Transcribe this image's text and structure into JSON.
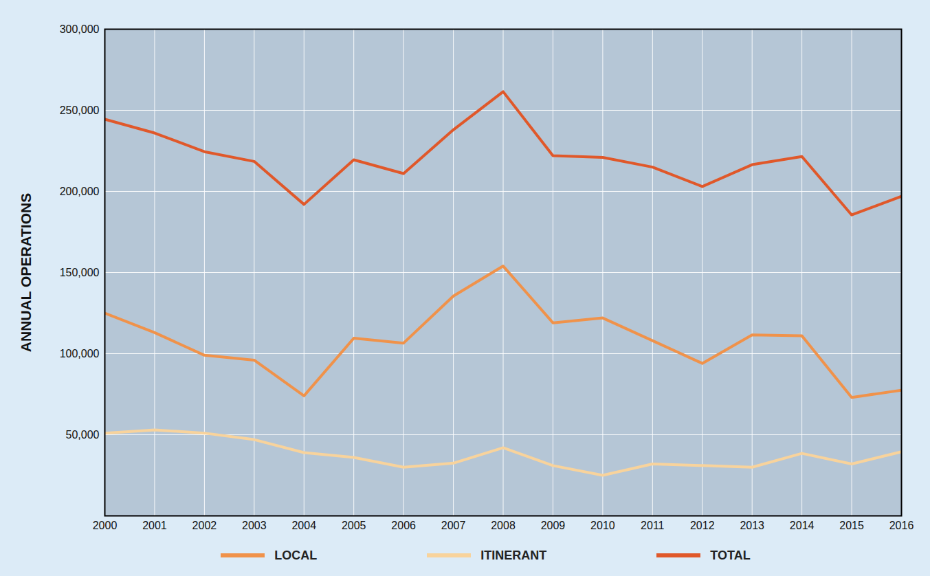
{
  "chart_data": {
    "type": "line",
    "y_label": "ANNUAL OPERATIONS",
    "x": [
      2000,
      2001,
      2002,
      2003,
      2004,
      2005,
      2006,
      2007,
      2008,
      2009,
      2010,
      2011,
      2012,
      2013,
      2014,
      2015,
      2016
    ],
    "series": [
      {
        "name": "LOCAL",
        "color": "#f0924a",
        "values": [
          125000,
          113000,
          99000,
          96000,
          74000,
          109500,
          106500,
          135500,
          154000,
          119000,
          122000,
          108000,
          94000,
          111500,
          111000,
          73000,
          77500
        ]
      },
      {
        "name": "ITINERANT",
        "color": "#f8d39c",
        "values": [
          51000,
          53000,
          51000,
          47000,
          39000,
          36000,
          30000,
          32500,
          42000,
          31000,
          25000,
          32000,
          31000,
          30000,
          38500,
          32000,
          39500
        ]
      },
      {
        "name": "TOTAL",
        "color": "#e0582a",
        "values": [
          244500,
          236000,
          224500,
          218500,
          192000,
          219500,
          211000,
          238000,
          261500,
          222000,
          221000,
          215000,
          203000,
          216500,
          221500,
          185500,
          197000
        ]
      }
    ],
    "xlim": [
      2000,
      2016
    ],
    "xticks": [
      2000,
      2001,
      2002,
      2003,
      2004,
      2005,
      2006,
      2007,
      2008,
      2009,
      2010,
      2011,
      2012,
      2013,
      2014,
      2015,
      2016
    ],
    "ylim": [
      0,
      300000
    ],
    "yticks": [
      {
        "value": 50000,
        "label": "50,000"
      },
      {
        "value": 100000,
        "label": "100,000"
      },
      {
        "value": 150000,
        "label": "150,000"
      },
      {
        "value": 200000,
        "label": "200,000"
      },
      {
        "value": 250000,
        "label": "250,000"
      },
      {
        "value": 300000,
        "label": "300,000"
      }
    ],
    "grid": true,
    "legend": "bottom"
  }
}
